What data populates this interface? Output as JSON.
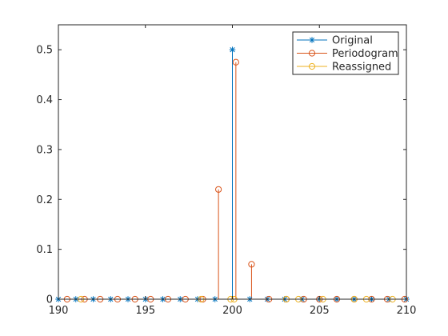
{
  "chart_data": {
    "type": "stem",
    "xlim": [
      190,
      210
    ],
    "ylim": [
      0,
      0.55
    ],
    "xticks": [
      190,
      195,
      200,
      205,
      210
    ],
    "yticks": [
      0,
      0.1,
      0.2,
      0.3,
      0.4,
      0.5
    ],
    "xtick_labels": [
      "190",
      "195",
      "200",
      "205",
      "210"
    ],
    "ytick_labels": [
      "0",
      "0.1",
      "0.2",
      "0.3",
      "0.4",
      "0.5"
    ],
    "legend_position": "top-right",
    "series": [
      {
        "name": "Original",
        "marker": "asterisk",
        "color": "#0072BD",
        "x": [
          190,
          191,
          192,
          193,
          194,
          195,
          196,
          197,
          198,
          199,
          200,
          201,
          202,
          203,
          204,
          205,
          206,
          207,
          208,
          209,
          210
        ],
        "y": [
          0,
          0,
          0,
          0,
          0,
          0,
          0,
          0,
          0,
          0,
          0.5,
          0,
          0,
          0,
          0,
          0,
          0,
          0,
          0,
          0,
          0
        ]
      },
      {
        "name": "Periodogram",
        "marker": "circle",
        "color": "#D95319",
        "x": [
          190.5,
          191.5,
          192.4,
          193.4,
          194.4,
          195.3,
          196.3,
          197.3,
          198.3,
          199.2,
          200.2,
          201.1,
          202.1,
          203.1,
          204.1,
          205.0,
          206.0,
          207.0,
          208.0,
          208.9,
          209.9
        ],
        "y": [
          0,
          0,
          0,
          0,
          0,
          0,
          0,
          0,
          0,
          0.22,
          0.475,
          0.07,
          0,
          0,
          0,
          0,
          0,
          0,
          0,
          0,
          0
        ]
      },
      {
        "name": "Reassigned",
        "marker": "circle",
        "color": "#EDB120",
        "x": [
          191.3,
          198.2,
          199.9,
          200.1,
          203.1,
          203.8,
          205.2,
          207.0,
          207.7,
          209.2
        ],
        "y": [
          0,
          0,
          0,
          0,
          0,
          0,
          0,
          0,
          0,
          0
        ]
      }
    ]
  }
}
